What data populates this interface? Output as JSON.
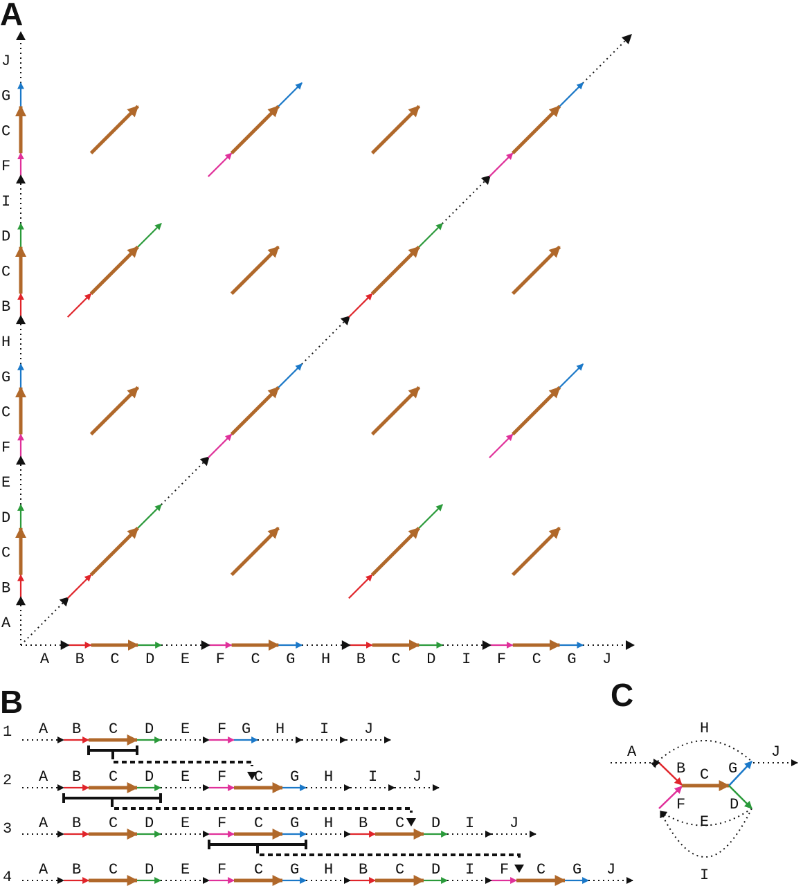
{
  "panels": {
    "a": "A",
    "b": "B",
    "c": "C"
  },
  "colors": {
    "B": "#e0242a",
    "C": "#b0682a",
    "D": "#2a9a3a",
    "F": "#e0309a",
    "G": "#1a78c8",
    "junction": "#111111",
    "linker": "#111111"
  },
  "sequence": [
    "A",
    "B",
    "C",
    "D",
    "E",
    "F",
    "C",
    "G",
    "H",
    "B",
    "C",
    "D",
    "I",
    "F",
    "C",
    "G",
    "J"
  ],
  "panel_b": {
    "rows": [
      {
        "num": "1",
        "labels": [
          "A",
          "B",
          "C",
          "D",
          "E",
          "F",
          "G",
          "H",
          "I",
          "J"
        ]
      },
      {
        "num": "2",
        "labels": [
          "A",
          "B",
          "C",
          "D",
          "E",
          "F",
          "C",
          "G",
          "H",
          "I",
          "J"
        ]
      },
      {
        "num": "3",
        "labels": [
          "A",
          "B",
          "C",
          "D",
          "E",
          "F",
          "C",
          "G",
          "H",
          "B",
          "C",
          "D",
          "I",
          "J"
        ]
      },
      {
        "num": "4",
        "labels": [
          "A",
          "B",
          "C",
          "D",
          "E",
          "F",
          "C",
          "G",
          "H",
          "B",
          "C",
          "D",
          "I",
          "F",
          "C",
          "G",
          "J"
        ]
      }
    ]
  },
  "panel_c": {
    "labels": [
      "A",
      "B",
      "C",
      "G",
      "J",
      "H",
      "F",
      "D",
      "E",
      "I"
    ]
  }
}
